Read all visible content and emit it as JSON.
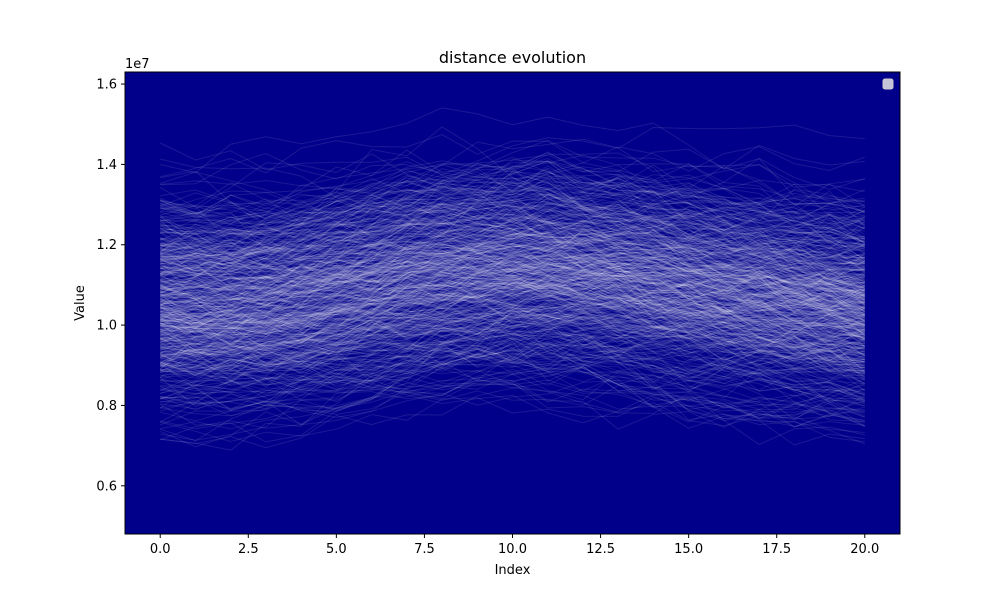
{
  "chart_data": {
    "type": "line",
    "title": "distance evolution",
    "xlabel": "Index",
    "ylabel": "Value",
    "y_offset_label": "1e7",
    "xlim": [
      -1,
      21
    ],
    "ylim": [
      4800000,
      16300000
    ],
    "x_ticks": [
      0,
      2.5,
      5,
      7.5,
      10,
      12.5,
      15,
      17.5,
      20
    ],
    "x_tick_labels": [
      "0.0",
      "2.5",
      "5.0",
      "7.5",
      "10.0",
      "12.5",
      "15.0",
      "17.5",
      "20.0"
    ],
    "y_ticks": [
      6000000,
      8000000,
      10000000,
      12000000,
      14000000,
      16000000
    ],
    "y_tick_labels": [
      "0.6",
      "0.8",
      "1.0",
      "1.2",
      "1.4",
      "1.6"
    ],
    "x": [
      0,
      1,
      2,
      3,
      4,
      5,
      6,
      7,
      8,
      9,
      10,
      11,
      12,
      13,
      14,
      15,
      16,
      17,
      18,
      19,
      20
    ],
    "series_count": 600,
    "series_mean": [
      10500000,
      10450000,
      10450000,
      10500000,
      10600000,
      10750000,
      10900000,
      11050000,
      11200000,
      11250000,
      11300000,
      11300000,
      11250000,
      11150000,
      11050000,
      10900000,
      10800000,
      10700000,
      10550000,
      10450000,
      10350000
    ],
    "series_spread": 1600000,
    "series_min": 5300000,
    "series_max": 15700000,
    "line_color": "#ffffff",
    "line_alpha": 0.1,
    "legend": "upper-right",
    "legend_entries": [],
    "grid": false,
    "background_color": "#00008b",
    "axes_color": "#000000"
  }
}
